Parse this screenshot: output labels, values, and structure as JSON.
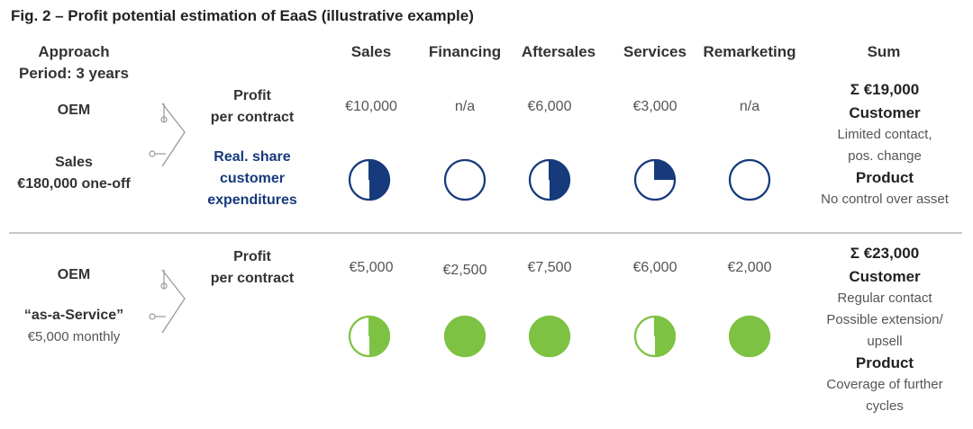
{
  "title": "Fig. 2 – Profit potential estimation of EaaS (illustrative example)",
  "approach": {
    "line1": "Approach",
    "line2": "Period: 3 years"
  },
  "columns": [
    "Sales",
    "Financing",
    "Aftersales",
    "Services",
    "Remarketing"
  ],
  "sum_header": "Sum",
  "colors": {
    "blue": "#163A7C",
    "green": "#7DC242",
    "navy_text": "#163A7C"
  },
  "rows": [
    {
      "oem": "OEM",
      "model_line1": "Sales",
      "model_line2": "€180,000 one-off",
      "profit_label_1": "Profit",
      "profit_label_2": "per contract",
      "share_label_1": "Real. share",
      "share_label_2": "customer",
      "share_label_3": "expenditures",
      "values": [
        "€10,000",
        "n/a",
        "€6,000",
        "€3,000",
        "n/a"
      ],
      "shares": [
        0.5,
        0,
        0.5,
        0.25,
        0
      ],
      "sum_total": "Σ €19,000",
      "customer_head": "Customer",
      "customer_text": [
        "Limited contact,",
        "pos. change"
      ],
      "product_head": "Product",
      "product_text": [
        "No control over asset"
      ]
    },
    {
      "oem": "OEM",
      "model_line1": "“as-a-Service”",
      "model_line2": "€5,000 monthly",
      "profit_label_1": "Profit",
      "profit_label_2": "per contract",
      "values": [
        "€5,000",
        "€2,500",
        "€7,500",
        "€6,000",
        "€2,000"
      ],
      "shares": [
        0.5,
        1,
        1,
        0.5,
        1
      ],
      "sum_total": "Σ €23,000",
      "customer_head": "Customer",
      "customer_text": [
        "Regular contact",
        "Possible extension/",
        "upsell"
      ],
      "product_head": "Product",
      "product_text": [
        "Coverage of further",
        "cycles"
      ]
    }
  ]
}
